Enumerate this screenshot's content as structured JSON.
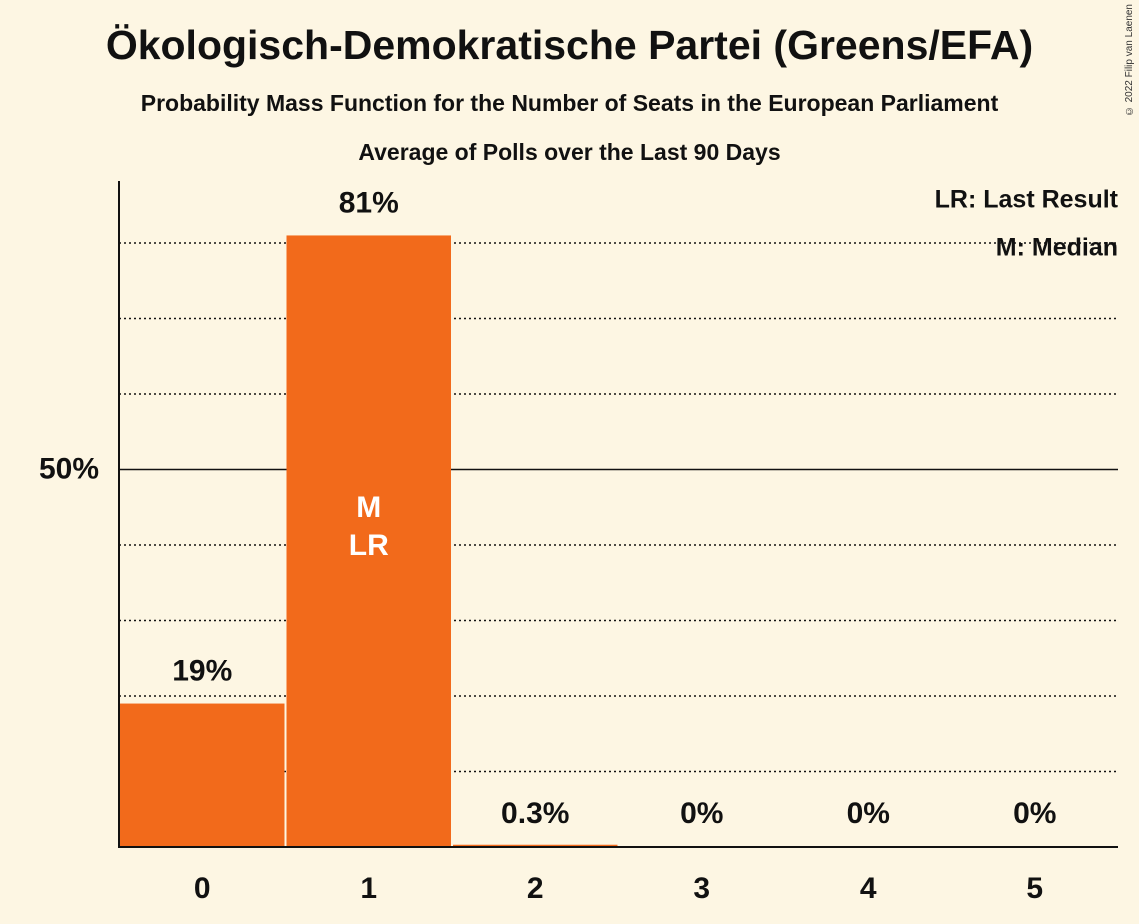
{
  "title": "Ökologisch-Demokratische Partei (Greens/EFA)",
  "subtitle": "Probability Mass Function for the Number of Seats in the European Parliament",
  "subtitle2": "Average of Polls over the Last 90 Days",
  "copyright": "© 2022 Filip van Laenen",
  "legend": {
    "lr": "LR: Last Result",
    "m": "M: Median"
  },
  "colors": {
    "bar": "#f26a1b",
    "background": "#fdf6e3",
    "axis": "#111111"
  },
  "chart_data": {
    "type": "bar",
    "categories": [
      "0",
      "1",
      "2",
      "3",
      "4",
      "5"
    ],
    "values": [
      19,
      81,
      0.3,
      0,
      0,
      0
    ],
    "value_labels": [
      "19%",
      "81%",
      "0.3%",
      "0%",
      "0%",
      "0%"
    ],
    "bar_annotations": {
      "1": [
        "M",
        "LR"
      ]
    },
    "ylim": [
      0,
      88
    ],
    "yticks": [
      {
        "value": 50,
        "label": "50%"
      }
    ],
    "gridlines": [
      10,
      20,
      30,
      40,
      60,
      70,
      80
    ],
    "grid": true,
    "legend_position": "top-right"
  }
}
